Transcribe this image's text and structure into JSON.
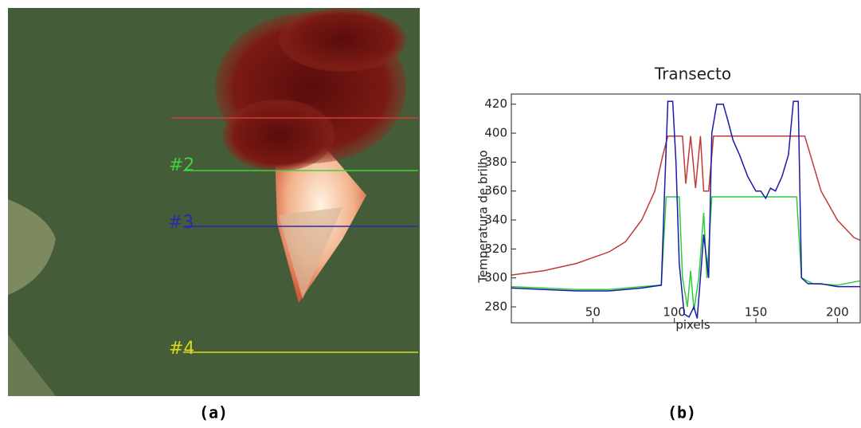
{
  "image": {
    "labels": [
      "#2",
      "#3",
      "#4"
    ],
    "caption": "(a)"
  },
  "chart_data": {
    "type": "line",
    "title": "Transecto",
    "x_label": "pixels",
    "y_label": "Temperatura de brilho",
    "caption": "(b)",
    "xlim": [
      0,
      214
    ],
    "ylim": [
      269,
      427
    ],
    "xticks": [
      50,
      100,
      150,
      200
    ],
    "yticks": [
      280,
      300,
      320,
      340,
      360,
      380,
      400,
      420
    ],
    "series": [
      {
        "name": "#2",
        "color": "#c0393b",
        "x": [
          0,
          20,
          40,
          60,
          70,
          80,
          88,
          93,
          96,
          105,
          107,
          110,
          113,
          116,
          118,
          121,
          124,
          180,
          190,
          200,
          210,
          214
        ],
        "values": [
          302,
          305,
          310,
          318,
          325,
          340,
          360,
          385,
          398,
          398,
          365,
          398,
          362,
          398,
          360,
          360,
          398,
          398,
          360,
          340,
          328,
          326
        ]
      },
      {
        "name": "#4",
        "color": "#2ecc40",
        "x": [
          0,
          20,
          40,
          60,
          80,
          92,
          95,
          103,
          105,
          108,
          110,
          112,
          115,
          118,
          120,
          123,
          175,
          178,
          185,
          200,
          214
        ],
        "values": [
          294,
          293,
          292,
          292,
          294,
          295,
          356,
          356,
          300,
          280,
          305,
          278,
          300,
          345,
          300,
          356,
          356,
          300,
          296,
          295,
          298
        ]
      },
      {
        "name": "#3",
        "color": "#1a1aa6",
        "x": [
          0,
          20,
          40,
          60,
          80,
          92,
          94,
          96,
          99,
          101,
          103,
          106,
          109,
          112,
          114,
          116,
          118,
          121,
          123,
          126,
          130,
          133,
          136,
          140,
          145,
          150,
          153,
          156,
          159,
          162,
          166,
          170,
          173,
          176,
          178,
          182,
          190,
          200,
          214
        ],
        "values": [
          293,
          292,
          291,
          291,
          293,
          295,
          360,
          422,
          422,
          380,
          310,
          275,
          273,
          280,
          272,
          300,
          330,
          300,
          400,
          420,
          420,
          408,
          395,
          385,
          370,
          360,
          360,
          355,
          362,
          360,
          370,
          385,
          422,
          422,
          300,
          296,
          296,
          294,
          294
        ]
      }
    ]
  }
}
